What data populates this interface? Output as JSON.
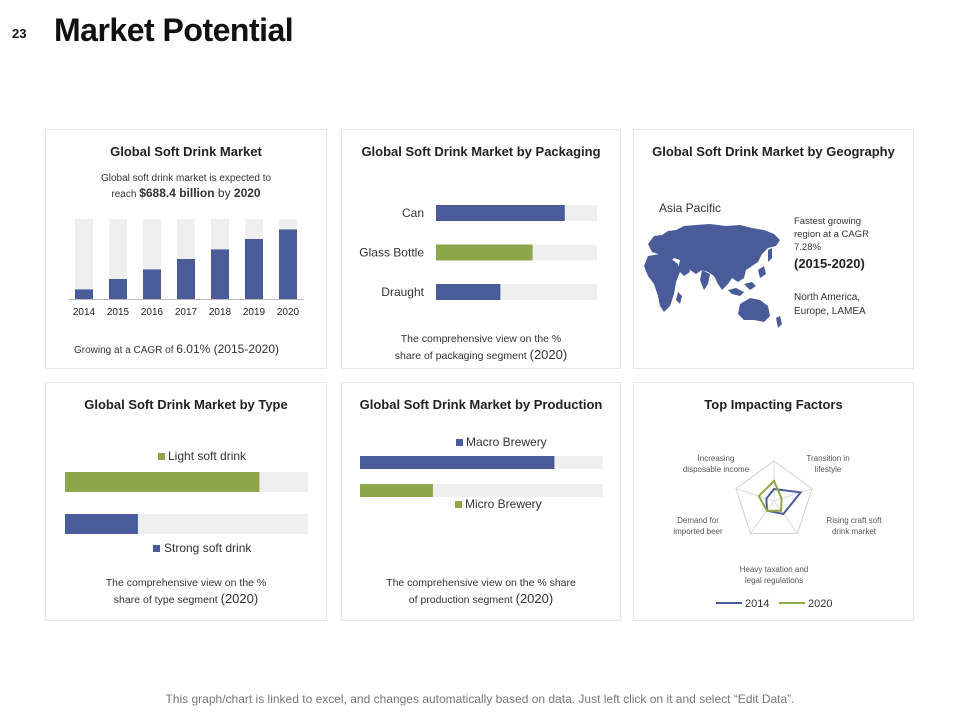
{
  "slide_number": "23",
  "title": "Market Potential",
  "colors": {
    "blue": "#4a5b9a",
    "green": "#8ea64a",
    "track": "#efefef"
  },
  "panels": {
    "market": {
      "title": "Global Soft Drink Market",
      "desc_line1": "Global soft drink market is expected to",
      "desc_pre": "reach ",
      "desc_value": "$688.4 billion",
      "desc_mid": " by ",
      "desc_year": "2020",
      "cagr_pre": "Growing at a CAGR of ",
      "cagr_value": "6.01%",
      "cagr_period": " (2015-2020)"
    },
    "packaging": {
      "title": "Global Soft Drink Market by Packaging",
      "cap_line1": "The comprehensive view on the %",
      "cap_line2": "share of packaging segment ",
      "cap_year": "(2020)"
    },
    "geography": {
      "title": "Global Soft Drink Market by Geography",
      "region": "Asia Pacific",
      "fast_line1": "Fastest growing",
      "fast_line2": "region at a CAGR",
      "fast_line3": "7.28%",
      "fast_period": "(2015-2020)",
      "others_line1": "North America,",
      "others_line2": "Europe, LAMEA"
    },
    "type": {
      "title": "Global Soft Drink Market by Type",
      "cap_line1": "The comprehensive view on the %",
      "cap_line2": "share of type segment ",
      "cap_year": "(2020)"
    },
    "production": {
      "title": "Global Soft Drink Market by Production",
      "cap_line1": "The comprehensive view on the % share",
      "cap_line2": "of production segment ",
      "cap_year": "(2020)"
    },
    "factors": {
      "title": "Top Impacting Factors"
    }
  },
  "footer": "This graph/chart is linked to excel, and changes automatically based on data. Just left click on it and select “Edit Data”.",
  "chart_data": [
    {
      "type": "bar",
      "categories": [
        "2014",
        "2015",
        "2016",
        "2017",
        "2018",
        "2019",
        "2020"
      ],
      "values": [
        12,
        25,
        37,
        50,
        62,
        75,
        87
      ],
      "ylim": [
        0,
        100
      ]
    },
    {
      "type": "bar",
      "orientation": "horizontal",
      "categories": [
        "Can",
        "Glass Bottle",
        "Draught"
      ],
      "values": [
        80,
        60,
        40
      ],
      "colors": [
        "#4a5b9a",
        "#8ea64a",
        "#4a5b9a"
      ],
      "ylim": [
        0,
        100
      ]
    },
    {
      "type": "bar",
      "orientation": "horizontal",
      "series": [
        {
          "name": "Light  soft drink",
          "values": [
            80
          ],
          "color": "#8ea64a"
        },
        {
          "name": "Strong  soft drink",
          "values": [
            30
          ],
          "color": "#4a5b9a"
        }
      ],
      "ylim": [
        0,
        100
      ]
    },
    {
      "type": "bar",
      "orientation": "horizontal",
      "series": [
        {
          "name": "Macro Brewery",
          "values": [
            80
          ],
          "color": "#4a5b9a"
        },
        {
          "name": "Micro Brewery",
          "values": [
            30
          ],
          "color": "#8ea64a"
        }
      ],
      "ylim": [
        0,
        100
      ]
    },
    {
      "type": "radar",
      "categories": [
        "Transition in lifestyle",
        "Rising craft soft drink market",
        "Heavy taxation and legal regulations",
        "Demand for imported beer",
        "Increasing disposable income"
      ],
      "axis_labels": [
        [
          "Transition in",
          "lifestyle"
        ],
        [
          "Rising craft soft",
          "drink market"
        ],
        [
          "Heavy taxation and",
          "legal regulations"
        ],
        [
          "Demand for",
          "imported beer"
        ],
        [
          "Increasing",
          "disposable income"
        ]
      ],
      "series": [
        {
          "name": "2014",
          "values": [
            3.5,
            2.0,
            1.5,
            1.0,
            1.5
          ],
          "color": "#4a5b9a"
        },
        {
          "name": "2020",
          "values": [
            1.0,
            1.5,
            1.5,
            2.0,
            2.5
          ],
          "color": "#8ea64a"
        }
      ],
      "ylim": [
        0,
        5
      ]
    }
  ]
}
